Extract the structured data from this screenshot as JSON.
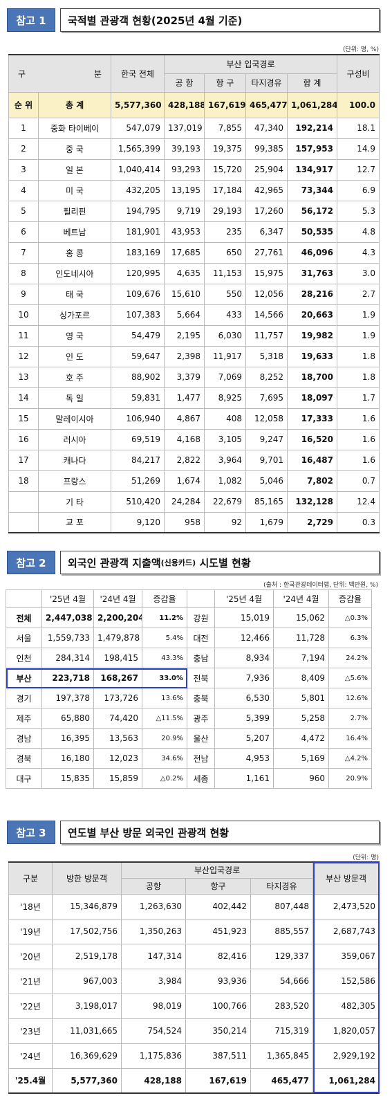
{
  "section1": {
    "label": "참고 1",
    "title": "국적별 관광객 현황(2025년 4월 기준)",
    "unit": "(단위: 명, %)",
    "header": {
      "category_left": "구",
      "category_right": "분",
      "korea_total": "한국 전체",
      "busan_route": "부산 입국경로",
      "airport": "공 항",
      "port": "항 구",
      "via_other": "타지경유",
      "sum": "합 계",
      "share": "구성비"
    },
    "total_row": [
      "순 위",
      "총 계",
      "5,577,360",
      "428,188",
      "167,619",
      "465,477",
      "1,061,284",
      "100.0"
    ],
    "rows": [
      [
        "1",
        "중화 타이베이",
        "547,079",
        "137,019",
        "7,855",
        "47,340",
        "192,214",
        "18.1"
      ],
      [
        "2",
        "중 국",
        "1,565,399",
        "39,193",
        "19,375",
        "99,385",
        "157,953",
        "14.9"
      ],
      [
        "3",
        "일 본",
        "1,040,414",
        "93,293",
        "15,720",
        "25,904",
        "134,917",
        "12.7"
      ],
      [
        "4",
        "미 국",
        "432,205",
        "13,195",
        "17,184",
        "42,965",
        "73,344",
        "6.9"
      ],
      [
        "5",
        "필리핀",
        "194,795",
        "9,719",
        "29,193",
        "17,260",
        "56,172",
        "5.3"
      ],
      [
        "6",
        "베트남",
        "181,901",
        "43,953",
        "235",
        "6,347",
        "50,535",
        "4.8"
      ],
      [
        "7",
        "홍 콩",
        "183,169",
        "17,685",
        "650",
        "27,761",
        "46,096",
        "4.3"
      ],
      [
        "8",
        "인도네시아",
        "120,995",
        "4,635",
        "11,153",
        "15,975",
        "31,763",
        "3.0"
      ],
      [
        "9",
        "태 국",
        "109,676",
        "15,610",
        "550",
        "12,056",
        "28,216",
        "2.7"
      ],
      [
        "10",
        "싱가포르",
        "107,383",
        "5,664",
        "433",
        "14,566",
        "20,663",
        "1.9"
      ],
      [
        "11",
        "영 국",
        "54,479",
        "2,195",
        "6,030",
        "11,757",
        "19,982",
        "1.9"
      ],
      [
        "12",
        "인 도",
        "59,647",
        "2,398",
        "11,917",
        "5,318",
        "19,633",
        "1.8"
      ],
      [
        "13",
        "호 주",
        "88,902",
        "3,379",
        "7,069",
        "8,252",
        "18,700",
        "1.8"
      ],
      [
        "14",
        "독 일",
        "59,831",
        "1,477",
        "8,925",
        "7,695",
        "18,097",
        "1.7"
      ],
      [
        "15",
        "말레이시아",
        "106,940",
        "4,867",
        "408",
        "12,058",
        "17,333",
        "1.6"
      ],
      [
        "16",
        "러시아",
        "69,519",
        "4,168",
        "3,105",
        "9,247",
        "16,520",
        "1.6"
      ],
      [
        "17",
        "캐나다",
        "84,217",
        "2,822",
        "3,964",
        "9,701",
        "16,487",
        "1.6"
      ],
      [
        "18",
        "프랑스",
        "51,269",
        "1,674",
        "1,082",
        "5,046",
        "7,802",
        "0.7"
      ],
      [
        null,
        "기 타",
        "510,420",
        "24,284",
        "22,679",
        "85,165",
        "132,128",
        "12.4"
      ],
      [
        null,
        "교 포",
        "9,120",
        "958",
        "92",
        "1,679",
        "2,729",
        "0.3"
      ]
    ]
  },
  "section2": {
    "label": "참고 2",
    "title_parts": [
      "외국인 관광객 지출액",
      "(신용카드)",
      "시도별 현황"
    ],
    "source": "(출처 : 한국관광데이터랩, 단위: 백만원, %)",
    "header": [
      "'25년 4월",
      "'24년 4월",
      "증감율"
    ],
    "rows": [
      [
        "전체",
        "2,447,038",
        "2,200,204",
        "11.2%",
        "강원",
        "15,019",
        "15,062",
        "△0.3%"
      ],
      [
        "서울",
        "1,559,733",
        "1,479,878",
        "5.4%",
        "대전",
        "12,466",
        "11,728",
        "6.3%"
      ],
      [
        "인천",
        "284,314",
        "198,415",
        "43.3%",
        "충남",
        "8,934",
        "7,194",
        "24.2%"
      ],
      [
        "부산",
        "223,718",
        "168,267",
        "33.0%",
        "전북",
        "7,936",
        "8,409",
        "△5.6%"
      ],
      [
        "경기",
        "197,378",
        "173,726",
        "13.6%",
        "충북",
        "6,530",
        "5,801",
        "12.6%"
      ],
      [
        "제주",
        "65,880",
        "74,420",
        "△11.5%",
        "광주",
        "5,399",
        "5,258",
        "2.7%"
      ],
      [
        "경남",
        "16,395",
        "13,563",
        "20.9%",
        "울산",
        "5,207",
        "4,472",
        "16.4%"
      ],
      [
        "경북",
        "16,180",
        "12,023",
        "34.6%",
        "전남",
        "4,953",
        "5,169",
        "△4.2%"
      ],
      [
        "대구",
        "15,835",
        "15,859",
        "△0.2%",
        "세종",
        "1,161",
        "960",
        "20.9%"
      ]
    ]
  },
  "section3": {
    "label": "참고 3",
    "title": "연도별 부산 방문 외국인 관광객 현황",
    "unit": "(단위: 명)",
    "header": {
      "category": "구분",
      "korea_visitors": "방한 방문객",
      "busan_route": "부산입국경로",
      "airport": "공항",
      "port": "항구",
      "via_other": "타지경유",
      "busan_visitors": "부산 방문객"
    },
    "rows": [
      [
        "'18년",
        "15,346,879",
        "1,263,630",
        "402,442",
        "807,448",
        "2,473,520"
      ],
      [
        "'19년",
        "17,502,756",
        "1,350,263",
        "451,923",
        "885,557",
        "2,687,743"
      ],
      [
        "'20년",
        "2,519,178",
        "147,314",
        "82,416",
        "129,337",
        "359,067"
      ],
      [
        "'21년",
        "967,003",
        "3,984",
        "93,936",
        "54,666",
        "152,586"
      ],
      [
        "'22년",
        "3,198,017",
        "98,019",
        "100,766",
        "283,520",
        "482,305"
      ],
      [
        "'23년",
        "11,031,665",
        "754,524",
        "350,214",
        "715,319",
        "1,820,057"
      ],
      [
        "'24년",
        "16,369,629",
        "1,175,836",
        "387,511",
        "1,365,845",
        "2,929,192"
      ],
      [
        "'25.4월",
        "5,577,360",
        "428,188",
        "167,619",
        "465,477",
        "1,061,284"
      ]
    ]
  }
}
